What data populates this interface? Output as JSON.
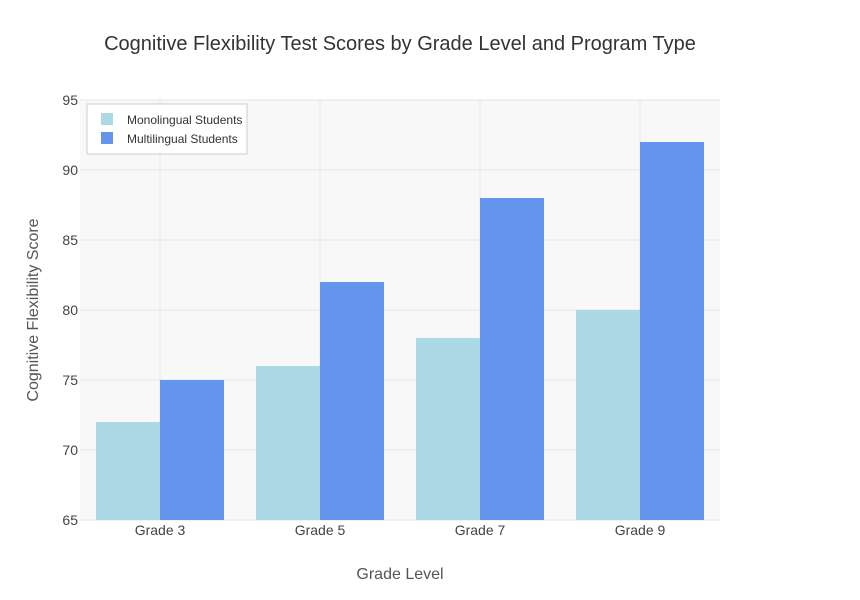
{
  "chart_data": {
    "type": "bar",
    "title": "Cognitive Flexibility Test Scores by Grade Level and Program Type",
    "xlabel": "Grade Level",
    "ylabel": "Cognitive Flexibility Score",
    "categories": [
      "Grade 3",
      "Grade 5",
      "Grade 7",
      "Grade 9"
    ],
    "series": [
      {
        "name": "Monolingual Students",
        "color": "#add8e6",
        "values": [
          72,
          76,
          78,
          80
        ]
      },
      {
        "name": "Multilingual Students",
        "color": "#6495ed",
        "values": [
          75,
          82,
          88,
          92
        ]
      }
    ],
    "ylim": [
      65,
      95
    ],
    "yticks": [
      65,
      70,
      75,
      80,
      85,
      90,
      95
    ],
    "grid": true,
    "legend_position": "top-left",
    "plot_background": "#f8f8f8"
  }
}
